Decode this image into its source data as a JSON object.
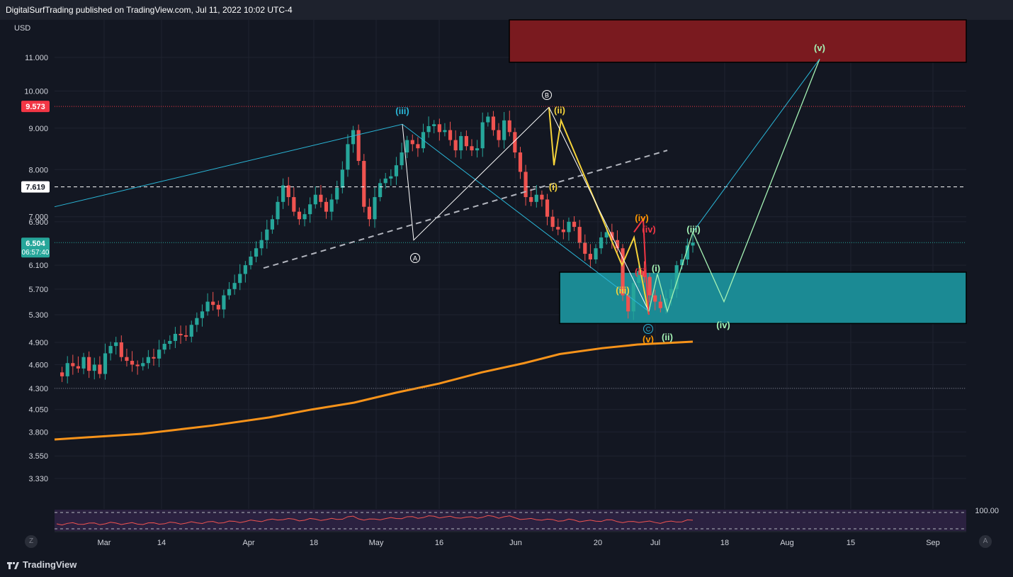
{
  "header": {
    "published": "DigitalSurfTrading published on TradingView.com, Jul 11, 2022 10:02 UTC-4"
  },
  "footer": {
    "brand": "TradingView"
  },
  "controls": {
    "zoom_label": "Z",
    "auto_label": "A"
  },
  "chart_data": {
    "type": "candlestick",
    "currency": "USD",
    "y_scale": "log",
    "ylim": [
      3.2,
      12.2
    ],
    "y_ticks": [
      "11.000",
      "10.000",
      "9.000",
      "8.000",
      "7.000",
      "6.900",
      "6.100",
      "5.700",
      "5.300",
      "4.900",
      "4.600",
      "4.300",
      "4.050",
      "3.800",
      "3.550",
      "3.330"
    ],
    "x_ticks": [
      "Mar",
      "14",
      "Apr",
      "18",
      "May",
      "16",
      "Jun",
      "20",
      "Jul",
      "18",
      "Aug",
      "15",
      "Sep"
    ],
    "price_markers": [
      {
        "label": "9.573",
        "value": 9.573,
        "color": "#f23645",
        "line": "dotted"
      },
      {
        "label": "7.619",
        "value": 7.619,
        "color": "#ffffff",
        "line": "dashed"
      },
      {
        "label": "6.504",
        "sub": "06:57:40",
        "value": 6.504,
        "color": "#26a69a",
        "line": "dotted"
      }
    ],
    "wave_labels": [
      {
        "text": "(iii)",
        "color": "#2ab7d8"
      },
      {
        "text": "A",
        "color": "#ffffff",
        "circled": true
      },
      {
        "text": "B",
        "color": "#ffffff",
        "circled": true
      },
      {
        "text": "C",
        "color": "#2ab7d8",
        "circled": true
      },
      {
        "text": "(ii)",
        "color": "#f5d33a"
      },
      {
        "text": "(i)",
        "color": "#f5d33a"
      },
      {
        "text": "(iii)",
        "color": "#f5d33a"
      },
      {
        "text": "(iv)",
        "color": "#ff9800"
      },
      {
        "text": "(v)",
        "color": "#ff9800"
      },
      {
        "text": "(iv)",
        "color": "#f23645"
      },
      {
        "text": "(ii)",
        "color": "#f23645"
      },
      {
        "text": "(i)",
        "color": "#a5f3b5"
      },
      {
        "text": "(ii)",
        "color": "#a5f3b5"
      },
      {
        "text": "(iii)",
        "color": "#a5f3b5"
      },
      {
        "text": "(iv)",
        "color": "#a5f3b5"
      },
      {
        "text": "(v)",
        "color": "#a5f3b5"
      }
    ],
    "oscillator": {
      "level_label": "100.00"
    },
    "colors": {
      "up": "#26a69a",
      "down": "#ef5350",
      "ma": "#f7931a",
      "resistance": "#7a1a1f",
      "support": "#1b8a94"
    }
  }
}
